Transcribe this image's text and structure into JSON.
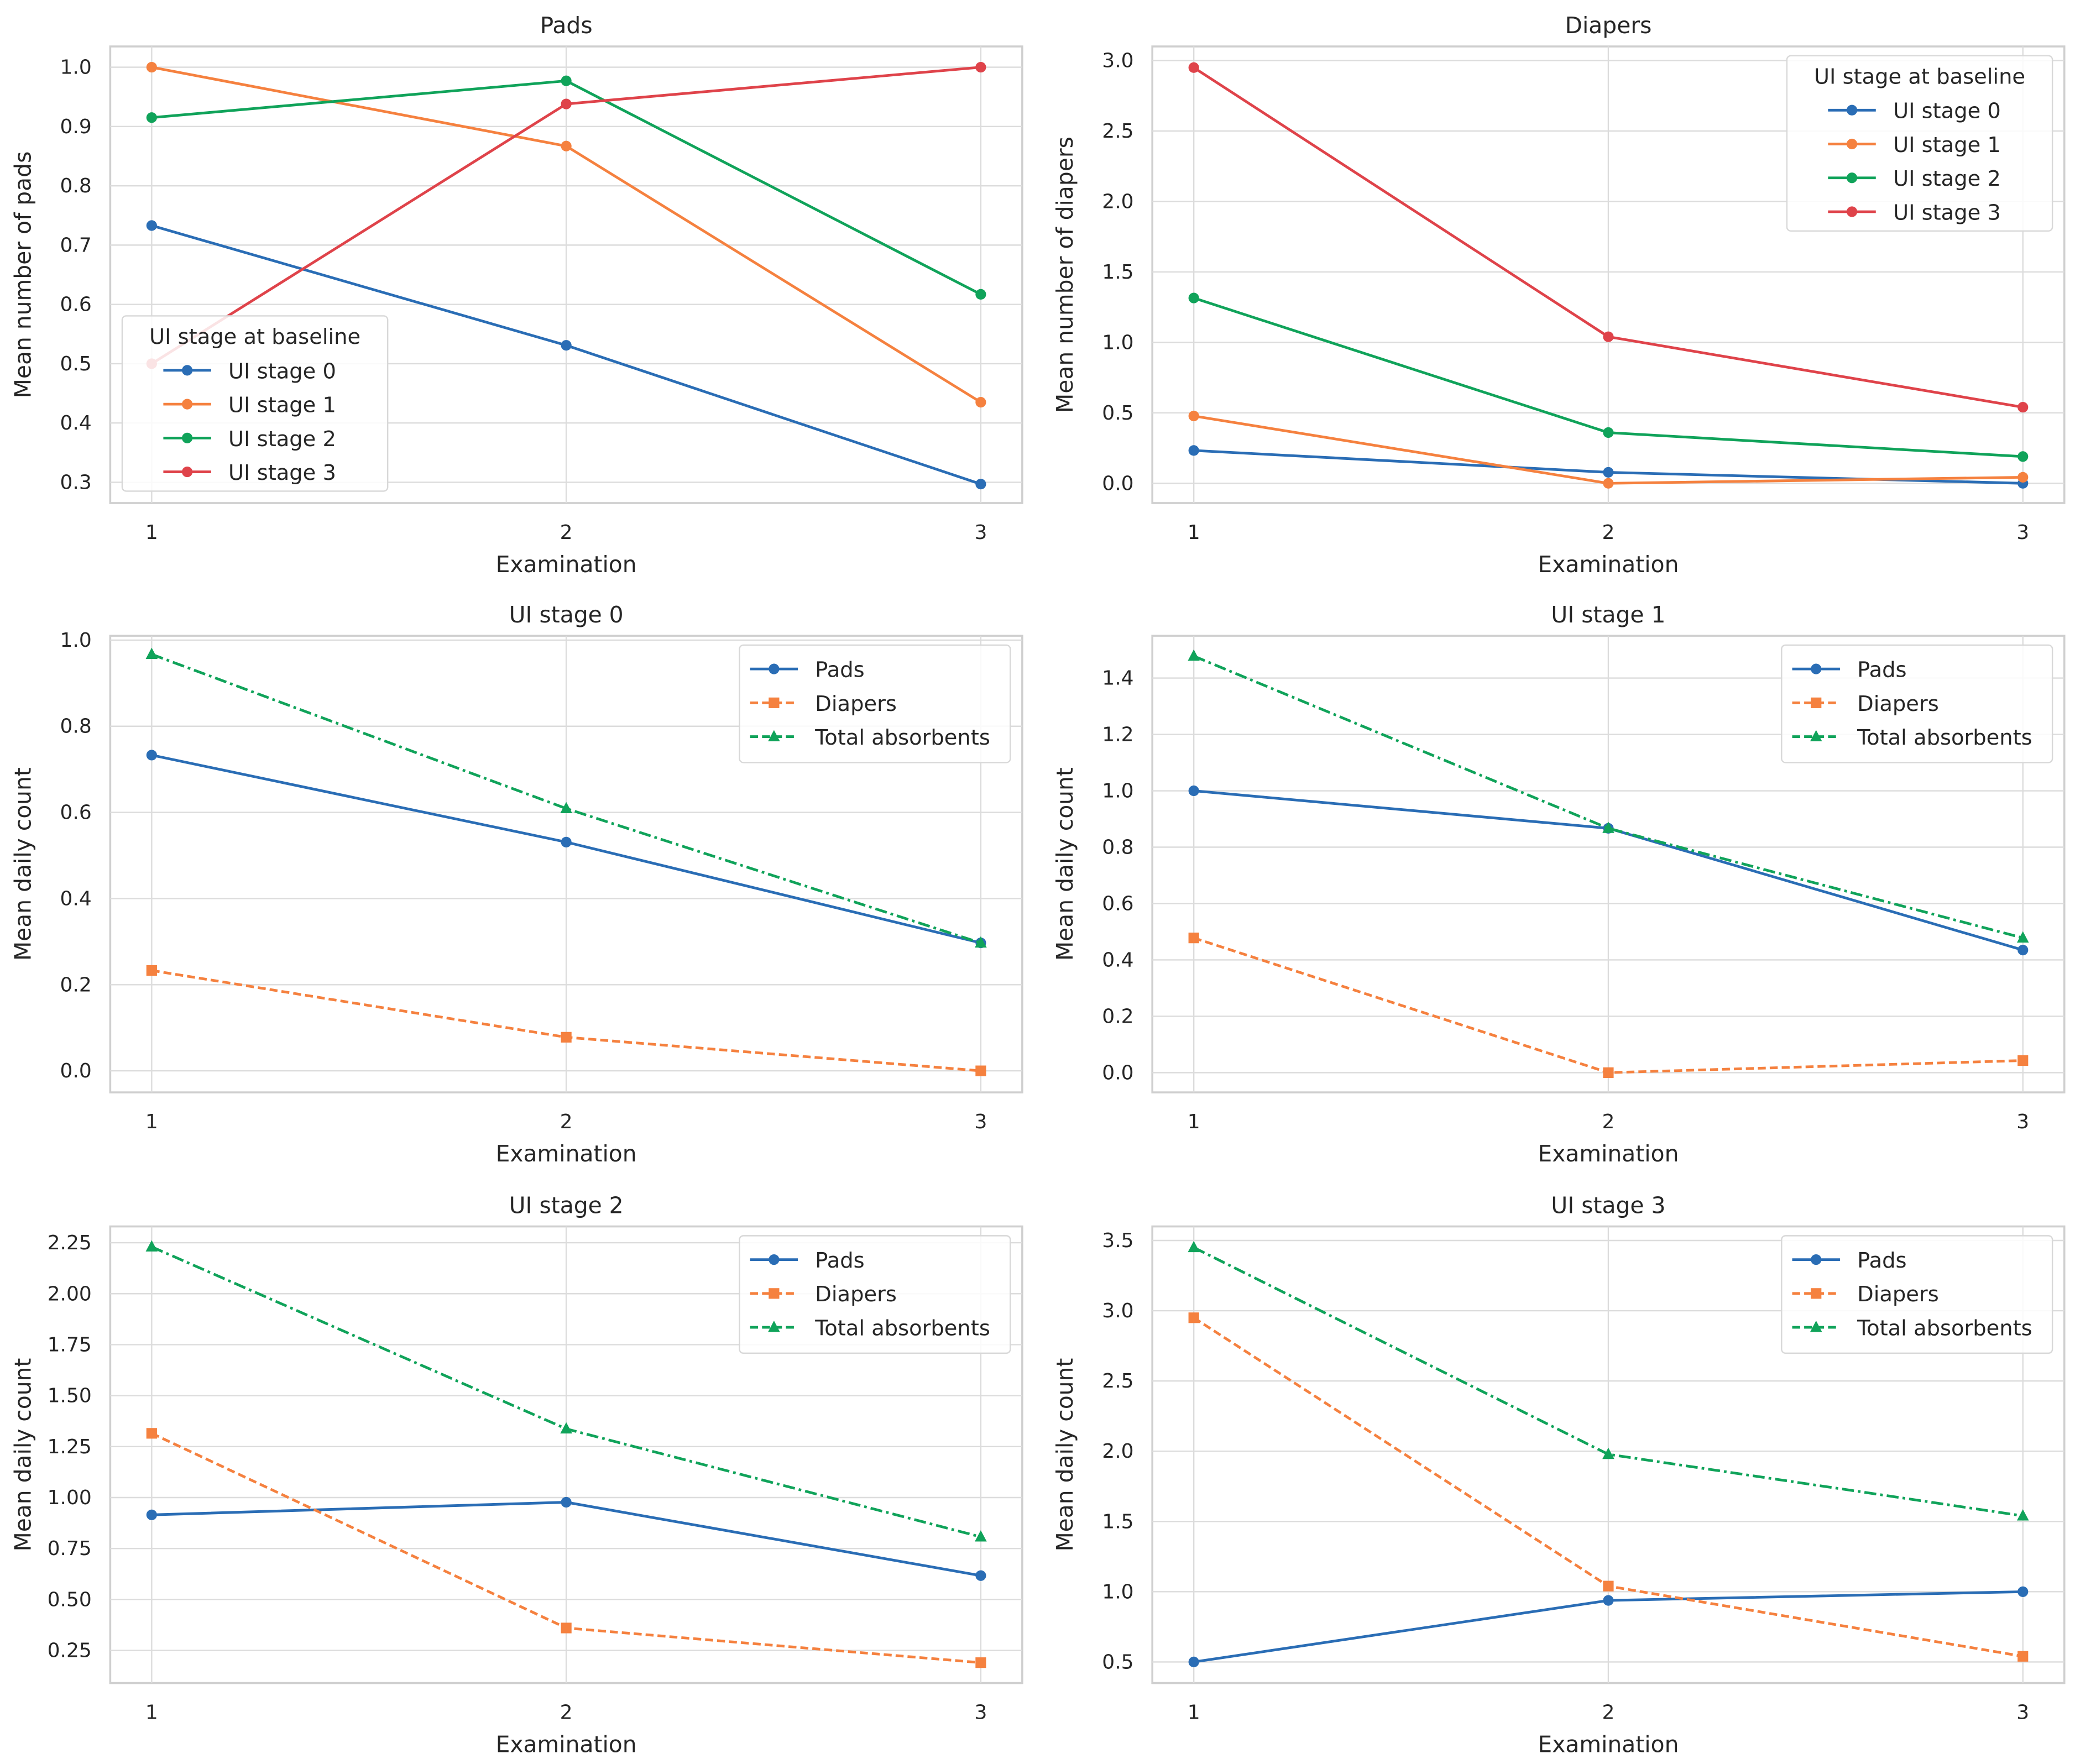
{
  "colors": {
    "stage0": "#2a6db5",
    "stage1": "#f5813f",
    "stage2": "#10a35a",
    "stage3": "#df434a",
    "pads": "#2a6db5",
    "diapers": "#f5813f",
    "total": "#10a35a",
    "grid": "#dcdcdc",
    "frame": "#cfcfcf"
  },
  "chart_data": [
    {
      "type": "line",
      "title": "Pads",
      "xlabel": "Examination",
      "ylabel": "Mean number of pads",
      "x": [
        1,
        2,
        3
      ],
      "xticks": [
        "1",
        "2",
        "3"
      ],
      "ylim": [
        0.265,
        1.035
      ],
      "yticks": [
        "0.3",
        "0.4",
        "0.5",
        "0.6",
        "0.7",
        "0.8",
        "0.9",
        "1.0"
      ],
      "grid": true,
      "legend": {
        "title": "UI stage at baseline",
        "placement": "lower-left"
      },
      "series": [
        {
          "name": "UI stage 0",
          "color_key": "stage0",
          "marker": "circle",
          "style": "solid",
          "values": [
            0.733,
            0.531,
            0.297
          ]
        },
        {
          "name": "UI stage 1",
          "color_key": "stage1",
          "marker": "circle",
          "style": "solid",
          "values": [
            1.0,
            0.867,
            0.435
          ]
        },
        {
          "name": "UI stage 2",
          "color_key": "stage2",
          "marker": "circle",
          "style": "solid",
          "values": [
            0.915,
            0.977,
            0.617
          ]
        },
        {
          "name": "UI stage 3",
          "color_key": "stage3",
          "marker": "circle",
          "style": "solid",
          "values": [
            0.5,
            0.938,
            1.0
          ]
        }
      ]
    },
    {
      "type": "line",
      "title": "Diapers",
      "xlabel": "Examination",
      "ylabel": "Mean number of diapers",
      "x": [
        1,
        2,
        3
      ],
      "xticks": [
        "1",
        "2",
        "3"
      ],
      "ylim": [
        -0.14,
        3.1
      ],
      "yticks": [
        "0.0",
        "0.5",
        "1.0",
        "1.5",
        "2.0",
        "2.5",
        "3.0"
      ],
      "grid": true,
      "legend": {
        "title": "UI stage at baseline",
        "placement": "upper-right"
      },
      "series": [
        {
          "name": "UI stage 0",
          "color_key": "stage0",
          "marker": "circle",
          "style": "solid",
          "values": [
            0.233,
            0.078,
            0.0
          ]
        },
        {
          "name": "UI stage 1",
          "color_key": "stage1",
          "marker": "circle",
          "style": "solid",
          "values": [
            0.478,
            0.0,
            0.043
          ]
        },
        {
          "name": "UI stage 2",
          "color_key": "stage2",
          "marker": "circle",
          "style": "solid",
          "values": [
            1.315,
            0.36,
            0.19
          ]
        },
        {
          "name": "UI stage 3",
          "color_key": "stage3",
          "marker": "circle",
          "style": "solid",
          "values": [
            2.95,
            1.04,
            0.54
          ]
        }
      ]
    },
    {
      "type": "line",
      "title": "UI stage 0",
      "xlabel": "Examination",
      "ylabel": "Mean daily count",
      "x": [
        1,
        2,
        3
      ],
      "xticks": [
        "1",
        "2",
        "3"
      ],
      "ylim": [
        -0.05,
        1.01
      ],
      "yticks": [
        "0.0",
        "0.2",
        "0.4",
        "0.6",
        "0.8",
        "1.0"
      ],
      "grid": true,
      "legend": {
        "title": "",
        "placement": "upper-right"
      },
      "series": [
        {
          "name": "Pads",
          "color_key": "pads",
          "marker": "circle",
          "style": "solid",
          "values": [
            0.733,
            0.531,
            0.297
          ]
        },
        {
          "name": "Diapers",
          "color_key": "diapers",
          "marker": "square",
          "style": "dashed",
          "values": [
            0.233,
            0.078,
            0.0
          ]
        },
        {
          "name": "Total absorbents",
          "color_key": "total",
          "marker": "triangle",
          "style": "dashdot",
          "values": [
            0.967,
            0.609,
            0.297
          ]
        }
      ]
    },
    {
      "type": "line",
      "title": "UI stage 1",
      "xlabel": "Examination",
      "ylabel": "Mean daily count",
      "x": [
        1,
        2,
        3
      ],
      "xticks": [
        "1",
        "2",
        "3"
      ],
      "ylim": [
        -0.07,
        1.55
      ],
      "yticks": [
        "0.0",
        "0.2",
        "0.4",
        "0.6",
        "0.8",
        "1.0",
        "1.2",
        "1.4"
      ],
      "grid": true,
      "legend": {
        "title": "",
        "placement": "upper-right"
      },
      "series": [
        {
          "name": "Pads",
          "color_key": "pads",
          "marker": "circle",
          "style": "solid",
          "values": [
            1.0,
            0.867,
            0.435
          ]
        },
        {
          "name": "Diapers",
          "color_key": "diapers",
          "marker": "square",
          "style": "dashed",
          "values": [
            0.478,
            0.0,
            0.043
          ]
        },
        {
          "name": "Total absorbents",
          "color_key": "total",
          "marker": "triangle",
          "style": "dashdot",
          "values": [
            1.478,
            0.867,
            0.478
          ]
        }
      ]
    },
    {
      "type": "line",
      "title": "UI stage 2",
      "xlabel": "Examination",
      "ylabel": "Mean daily count",
      "x": [
        1,
        2,
        3
      ],
      "xticks": [
        "1",
        "2",
        "3"
      ],
      "ylim": [
        0.09,
        2.33
      ],
      "yticks": [
        "0.25",
        "0.50",
        "0.75",
        "1.00",
        "1.25",
        "1.50",
        "1.75",
        "2.00",
        "2.25"
      ],
      "grid": true,
      "legend": {
        "title": "",
        "placement": "upper-right"
      },
      "series": [
        {
          "name": "Pads",
          "color_key": "pads",
          "marker": "circle",
          "style": "solid",
          "values": [
            0.915,
            0.977,
            0.617
          ]
        },
        {
          "name": "Diapers",
          "color_key": "diapers",
          "marker": "square",
          "style": "dashed",
          "values": [
            1.315,
            0.36,
            0.19
          ]
        },
        {
          "name": "Total absorbents",
          "color_key": "total",
          "marker": "triangle",
          "style": "dashdot",
          "values": [
            2.23,
            1.337,
            0.807
          ]
        }
      ]
    },
    {
      "type": "line",
      "title": "UI stage 3",
      "xlabel": "Examination",
      "ylabel": "Mean daily count",
      "x": [
        1,
        2,
        3
      ],
      "xticks": [
        "1",
        "2",
        "3"
      ],
      "ylim": [
        0.35,
        3.6
      ],
      "yticks": [
        "0.5",
        "1.0",
        "1.5",
        "2.0",
        "2.5",
        "3.0",
        "3.5"
      ],
      "grid": true,
      "legend": {
        "title": "",
        "placement": "upper-right"
      },
      "series": [
        {
          "name": "Pads",
          "color_key": "pads",
          "marker": "circle",
          "style": "solid",
          "values": [
            0.5,
            0.938,
            1.0
          ]
        },
        {
          "name": "Diapers",
          "color_key": "diapers",
          "marker": "square",
          "style": "dashed",
          "values": [
            2.95,
            1.04,
            0.54
          ]
        },
        {
          "name": "Total absorbents",
          "color_key": "total",
          "marker": "triangle",
          "style": "dashdot",
          "values": [
            3.45,
            1.978,
            1.54
          ]
        }
      ]
    }
  ]
}
